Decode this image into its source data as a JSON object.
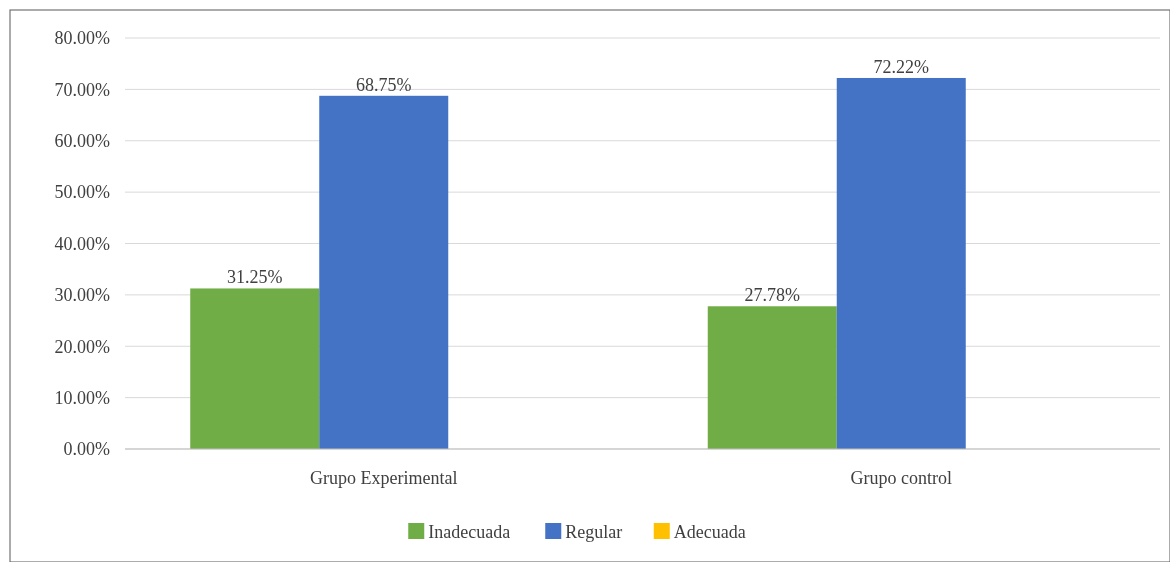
{
  "chart_data": {
    "type": "bar",
    "categories": [
      "Grupo Experimental",
      "Grupo control"
    ],
    "series": [
      {
        "name": "Inadecuada",
        "color": "#70ad47",
        "values": [
          31.25,
          27.78
        ],
        "value_labels": [
          "31.25%",
          "27.78%"
        ]
      },
      {
        "name": "Regular",
        "color": "#4472c4",
        "values": [
          68.75,
          72.22
        ],
        "value_labels": [
          "68.75%",
          "72.22%"
        ]
      },
      {
        "name": "Adecuada",
        "color": "#ffc000",
        "values": [
          null,
          null
        ]
      }
    ],
    "ylim": [
      0,
      80
    ],
    "yticks": [
      {
        "value": 0,
        "label": "0.00%"
      },
      {
        "value": 10,
        "label": "10.00%"
      },
      {
        "value": 20,
        "label": "20.00%"
      },
      {
        "value": 30,
        "label": "30.00%"
      },
      {
        "value": 40,
        "label": "40.00%"
      },
      {
        "value": 50,
        "label": "50.00%"
      },
      {
        "value": 60,
        "label": "60.00%"
      },
      {
        "value": 70,
        "label": "70.00%"
      },
      {
        "value": 80,
        "label": "80.00%"
      }
    ],
    "grid": "y",
    "legend": "bottom"
  }
}
